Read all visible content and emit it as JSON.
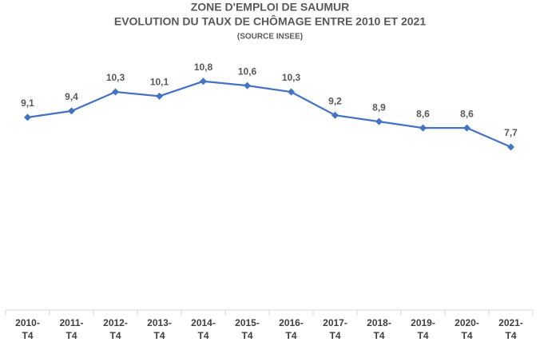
{
  "chart_data": {
    "type": "line",
    "title": "ZONE D'EMPLOI DE SAUMUR",
    "subtitle": "EVOLUTION DU TAUX DE CHÔMAGE ENTRE 2010 ET 2021",
    "source": "(SOURCE INSEE)",
    "categories": [
      "2010-T4",
      "2011-T4",
      "2012-T4",
      "2013-T4",
      "2014-T4",
      "2015-T4",
      "2016-T4",
      "2017-T4",
      "2018-T4",
      "2019-T4",
      "2020-T4",
      "2021-T4"
    ],
    "series": [
      {
        "color": "#4472c4",
        "values": [
          9.1,
          9.4,
          10.3,
          10.1,
          10.8,
          10.6,
          10.3,
          9.2,
          8.9,
          8.6,
          8.6,
          7.7
        ],
        "value_labels": [
          "9,1",
          "9,4",
          "10,3",
          "10,1",
          "10,8",
          "10,6",
          "10,3",
          "9,2",
          "8,9",
          "8,6",
          "8,6",
          "7,7"
        ]
      }
    ],
    "ylim": [
      0,
      12
    ]
  }
}
